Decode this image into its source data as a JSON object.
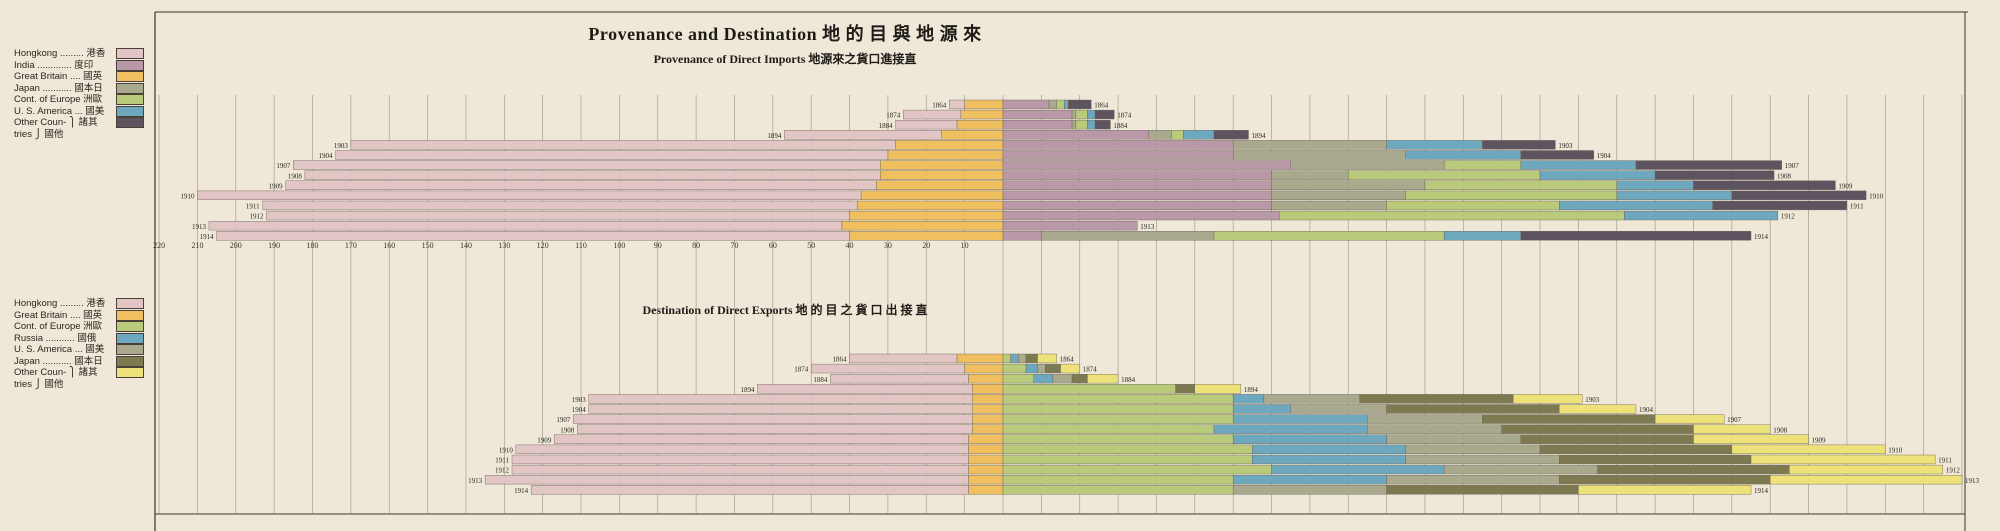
{
  "title": "Provenance and Destination 地 的 目 與 地 源 來",
  "subtitle_imports": "Provenance of Direct Imports 地源來之貨口進接直",
  "subtitle_exports": "Destination of Direct Exports 地 的 目 之 貨 口 出 接 直",
  "colors": {
    "Hongkong": "#e2c5c5",
    "India": "#b998a8",
    "Great Britain": "#f0c060",
    "Japan": "#a9a98e",
    "Cont. of Europe": "#b9cb7b",
    "U. S. America": "#6ea8bf",
    "Other Countries": "#5e5460",
    "Russia": "#6ea8bf",
    "Japan (exp)": "#7d7a52",
    "Other Countries (exp)": "#ede27a"
  },
  "legend_imports": [
    {
      "label": "Hongkong ......... 港香",
      "color": "#e2c5c5"
    },
    {
      "label": "India ............. 度印",
      "color": "#b998a8"
    },
    {
      "label": "Great Britain .... 國英",
      "color": "#f0c060"
    },
    {
      "label": "Japan ........... 國本日",
      "color": "#a9a98e"
    },
    {
      "label": "Cont. of Europe  洲歐",
      "color": "#b9cb7b"
    },
    {
      "label": "U. S. America ... 國美",
      "color": "#6ea8bf"
    },
    {
      "label": "Other Coun- ⎫ 諸其",
      "color": "#5e5460"
    },
    {
      "label": "tries        ⎭ 國他",
      "color": null
    }
  ],
  "legend_exports": [
    {
      "label": "Hongkong ......... 港香",
      "color": "#e2c5c5"
    },
    {
      "label": "Great Britain .... 國英",
      "color": "#f0c060"
    },
    {
      "label": "Cont. of Europe  洲歐",
      "color": "#b9cb7b"
    },
    {
      "label": "Russia ........... 國俄",
      "color": "#6ea8bf"
    },
    {
      "label": "U. S. America ... 國美",
      "color": "#a9a98e"
    },
    {
      "label": "Japan ........... 國本日",
      "color": "#7d7a52"
    },
    {
      "label": "Other Coun- ⎫ 諸其",
      "color": "#ede27a"
    },
    {
      "label": "tries        ⎭ 國他",
      "color": null
    }
  ],
  "chart_data": [
    {
      "type": "bar",
      "title": "Provenance of Direct Imports",
      "orientation": "horizontal-stacked-bidirectional",
      "xlim": [
        -220,
        250
      ],
      "x_tick_labels": [
        "220",
        "210",
        "200",
        "190",
        "180",
        "170",
        "160",
        "150",
        "140",
        "130",
        "120",
        "110",
        "100",
        "90",
        "80",
        "70",
        "60",
        "50",
        "40",
        "30",
        "20",
        "10"
      ],
      "years": [
        "1864",
        "1874",
        "1884",
        "1894",
        "1903",
        "1904",
        "1907",
        "1908",
        "1909",
        "1910",
        "1911",
        "1912",
        "1913",
        "1914"
      ],
      "left_series_order": [
        "Great Britain",
        "Hongkong"
      ],
      "right_series_order": [
        "India",
        "Japan",
        "Cont. of Europe",
        "U. S. America",
        "Other Countries"
      ],
      "rows": [
        {
          "year": "1864",
          "left": {
            "Great Britain": 10,
            "Hongkong": 4
          },
          "right": {
            "India": 12,
            "Japan": 2,
            "Cont. of Europe": 2,
            "U. S. America": 1,
            "Other Countries": 6
          }
        },
        {
          "year": "1874",
          "left": {
            "Great Britain": 11,
            "Hongkong": 15
          },
          "right": {
            "India": 18,
            "Japan": 1,
            "Cont. of Europe": 3,
            "U. S. America": 2,
            "Other Countries": 5
          }
        },
        {
          "year": "1884",
          "left": {
            "Great Britain": 12,
            "Hongkong": 16
          },
          "right": {
            "India": 18,
            "Japan": 1,
            "Cont. of Europe": 3,
            "U. S. America": 2,
            "Other Countries": 4
          }
        },
        {
          "year": "1894",
          "left": {
            "Great Britain": 16,
            "Hongkong": 41
          },
          "right": {
            "India": 38,
            "Japan": 6,
            "Cont. of Europe": 3,
            "U. S. America": 8,
            "Other Countries": 9
          }
        },
        {
          "year": "1903",
          "left": {
            "Great Britain": 28,
            "Hongkong": 142
          },
          "right": {
            "India": 60,
            "Japan": 40,
            "Cont. of Europe": 0,
            "U. S. America": 25,
            "Other Countries": 19
          }
        },
        {
          "year": "1904",
          "left": {
            "Great Britain": 30,
            "Hongkong": 144
          },
          "right": {
            "India": 60,
            "Japan": 45,
            "Cont. of Europe": 0,
            "U. S. America": 30,
            "Other Countries": 19
          }
        },
        {
          "year": "1907",
          "left": {
            "Great Britain": 32,
            "Hongkong": 153
          },
          "right": {
            "India": 75,
            "Japan": 40,
            "Cont. of Europe": 20,
            "U. S. America": 30,
            "Other Countries": 38
          }
        },
        {
          "year": "1908",
          "left": {
            "Great Britain": 32,
            "Hongkong": 150
          },
          "right": {
            "India": 70,
            "Japan": 20,
            "Cont. of Europe": 50,
            "U. S. America": 30,
            "Other Countries": 31
          }
        },
        {
          "year": "1909",
          "left": {
            "Great Britain": 33,
            "Hongkong": 154
          },
          "right": {
            "India": 70,
            "Japan": 40,
            "Cont. of Europe": 50,
            "U. S. America": 20,
            "Other Countries": 37
          }
        },
        {
          "year": "1910",
          "left": {
            "Great Britain": 37,
            "Hongkong": 173
          },
          "right": {
            "India": 70,
            "Japan": 35,
            "Cont. of Europe": 55,
            "U. S. America": 30,
            "Other Countries": 35
          }
        },
        {
          "year": "1911",
          "left": {
            "Great Britain": 38,
            "Hongkong": 155
          },
          "right": {
            "India": 70,
            "Japan": 30,
            "Cont. of Europe": 45,
            "U. S. America": 40,
            "Other Countries": 35
          }
        },
        {
          "year": "1912",
          "left": {
            "Great Britain": 40,
            "Hongkong": 152
          },
          "right": {
            "India": 72,
            "Japan": 0,
            "Cont. of Europe": 90,
            "U. S. America": 40,
            "Other Countries": 0
          }
        },
        {
          "year": "1913",
          "left": {
            "Great Britain": 42,
            "Hongkong": 165
          },
          "right": {
            "India": 35,
            "Japan": 0,
            "Cont. of Europe": 0,
            "U. S. America": 0,
            "Other Countries": 0
          }
        },
        {
          "year": "1914",
          "left": {
            "Great Britain": 40,
            "Hongkong": 165
          },
          "right": {
            "India": 10,
            "Japan": 45,
            "Cont. of Europe": 60,
            "U. S. America": 20,
            "Other Countries": 60
          }
        }
      ]
    },
    {
      "type": "bar",
      "title": "Destination of Direct Exports",
      "orientation": "horizontal-stacked-bidirectional",
      "xlim": [
        -220,
        250
      ],
      "years": [
        "1864",
        "1874",
        "1884",
        "1894",
        "1903",
        "1904",
        "1907",
        "1908",
        "1909",
        "1910",
        "1911",
        "1912",
        "1913",
        "1914"
      ],
      "left_series_order": [
        "Great Britain",
        "Hongkong"
      ],
      "right_series_order": [
        "Cont. of Europe",
        "Russia",
        "U. S. America",
        "Japan",
        "Other Countries"
      ],
      "rows": [
        {
          "year": "1864",
          "left": {
            "Great Britain": 12,
            "Hongkong": 28
          },
          "right": {
            "Cont. of Europe": 2,
            "Russia": 2,
            "U. S. America": 2,
            "Japan": 3,
            "Other Countries": 5
          }
        },
        {
          "year": "1874",
          "left": {
            "Great Britain": 10,
            "Hongkong": 40
          },
          "right": {
            "Cont. of Europe": 6,
            "Russia": 3,
            "U. S. America": 2,
            "Japan": 4,
            "Other Countries": 5
          }
        },
        {
          "year": "1884",
          "left": {
            "Great Britain": 9,
            "Hongkong": 36
          },
          "right": {
            "Cont. of Europe": 8,
            "Russia": 5,
            "U. S. America": 5,
            "Japan": 4,
            "Other Countries": 8
          }
        },
        {
          "year": "1894",
          "left": {
            "Great Britain": 8,
            "Hongkong": 56
          },
          "right": {
            "Cont. of Europe": 45,
            "Russia": 0,
            "U. S. America": 0,
            "Japan": 5,
            "Other Countries": 12
          }
        },
        {
          "year": "1903",
          "left": {
            "Great Britain": 8,
            "Hongkong": 100
          },
          "right": {
            "Cont. of Europe": 60,
            "Russia": 8,
            "U. S. America": 25,
            "Japan": 40,
            "Other Countries": 18
          }
        },
        {
          "year": "1904",
          "left": {
            "Great Britain": 8,
            "Hongkong": 100
          },
          "right": {
            "Cont. of Europe": 60,
            "Russia": 15,
            "U. S. America": 25,
            "Japan": 45,
            "Other Countries": 20
          }
        },
        {
          "year": "1907",
          "left": {
            "Great Britain": 8,
            "Hongkong": 104
          },
          "right": {
            "Cont. of Europe": 60,
            "Russia": 35,
            "U. S. America": 30,
            "Japan": 45,
            "Other Countries": 18
          }
        },
        {
          "year": "1908",
          "left": {
            "Great Britain": 8,
            "Hongkong": 103
          },
          "right": {
            "Cont. of Europe": 55,
            "Russia": 40,
            "U. S. America": 35,
            "Japan": 50,
            "Other Countries": 20
          }
        },
        {
          "year": "1909",
          "left": {
            "Great Britain": 9,
            "Hongkong": 108
          },
          "right": {
            "Cont. of Europe": 60,
            "Russia": 40,
            "U. S. America": 35,
            "Japan": 45,
            "Other Countries": 30
          }
        },
        {
          "year": "1910",
          "left": {
            "Great Britain": 9,
            "Hongkong": 118
          },
          "right": {
            "Cont. of Europe": 65,
            "Russia": 40,
            "U. S. America": 35,
            "Japan": 50,
            "Other Countries": 40
          }
        },
        {
          "year": "1911",
          "left": {
            "Great Britain": 9,
            "Hongkong": 119
          },
          "right": {
            "Cont. of Europe": 65,
            "Russia": 40,
            "U. S. America": 40,
            "Japan": 50,
            "Other Countries": 48
          }
        },
        {
          "year": "1912",
          "left": {
            "Great Britain": 9,
            "Hongkong": 119
          },
          "right": {
            "Cont. of Europe": 70,
            "Russia": 45,
            "U. S. America": 40,
            "Japan": 50,
            "Other Countries": 40
          }
        },
        {
          "year": "1913",
          "left": {
            "Great Britain": 9,
            "Hongkong": 126
          },
          "right": {
            "Cont. of Europe": 60,
            "Russia": 40,
            "U. S. America": 45,
            "Japan": 55,
            "Other Countries": 50
          }
        },
        {
          "year": "1914",
          "left": {
            "Great Britain": 9,
            "Hongkong": 114
          },
          "right": {
            "Cont. of Europe": 60,
            "Russia": 0,
            "U. S. America": 40,
            "Japan": 50,
            "Other Countries": 45
          }
        }
      ]
    }
  ]
}
